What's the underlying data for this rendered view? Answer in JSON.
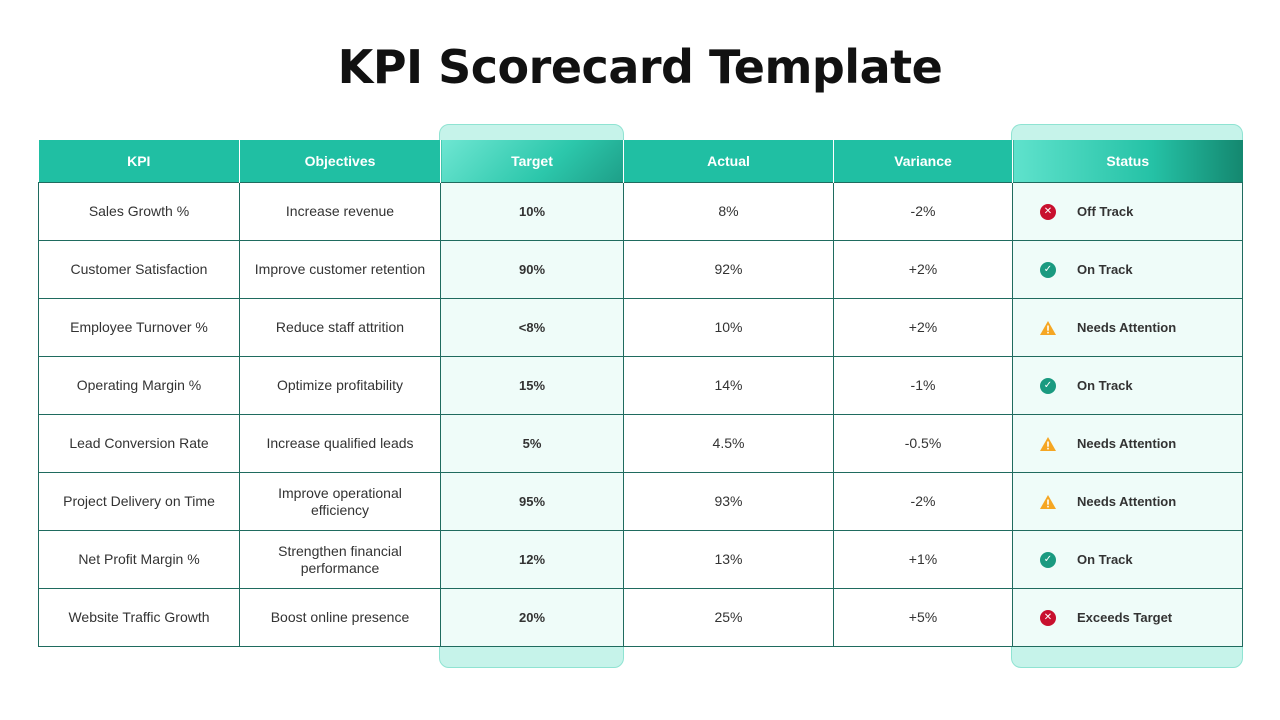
{
  "page": {
    "title": "KPI Scorecard Template"
  },
  "table": {
    "headers": {
      "kpi": "KPI",
      "objectives": "Objectives",
      "target": "Target",
      "actual": "Actual",
      "variance": "Variance",
      "status": "Status"
    },
    "rows": [
      {
        "kpi": "Sales Growth %",
        "objective": "Increase revenue",
        "target": "10%",
        "actual": "8%",
        "variance": "-2%",
        "status": "Off Track",
        "status_icon": "x-circle-icon"
      },
      {
        "kpi": "Customer Satisfaction",
        "objective": "Improve customer retention",
        "target": "90%",
        "actual": "92%",
        "variance": "+2%",
        "status": "On Track",
        "status_icon": "check-circle-icon"
      },
      {
        "kpi": "Employee Turnover %",
        "objective": "Reduce staff attrition",
        "target": "<8%",
        "actual": "10%",
        "variance": "+2%",
        "status": "Needs Attention",
        "status_icon": "warning-triangle-icon"
      },
      {
        "kpi": "Operating Margin %",
        "objective": "Optimize profitability",
        "target": "15%",
        "actual": "14%",
        "variance": "-1%",
        "status": "On Track",
        "status_icon": "check-circle-icon"
      },
      {
        "kpi": "Lead Conversion Rate",
        "objective": "Increase qualified leads",
        "target": "5%",
        "actual": "4.5%",
        "variance": "-0.5%",
        "status": "Needs Attention",
        "status_icon": "warning-triangle-icon"
      },
      {
        "kpi": "Project Delivery on Time",
        "objective": "Improve operational efficiency",
        "target": "95%",
        "actual": "93%",
        "variance": "-2%",
        "status": "Needs Attention",
        "status_icon": "warning-triangle-icon"
      },
      {
        "kpi": "Net Profit Margin %",
        "objective": "Strengthen financial performance",
        "target": "12%",
        "actual": "13%",
        "variance": "+1%",
        "status": "On Track",
        "status_icon": "check-circle-icon"
      },
      {
        "kpi": "Website Traffic Growth",
        "objective": "Boost online presence",
        "target": "20%",
        "actual": "25%",
        "variance": "+5%",
        "status": "Exceeds Target",
        "status_icon": "x-circle-icon"
      }
    ]
  },
  "colors": {
    "header_teal": "#20bfa3",
    "highlight_column": "#c6f3ea",
    "highlight_cell": "#effcf9",
    "grid_line": "#1f6b5f",
    "off_track_red": "#c8102e",
    "on_track_teal": "#1a9a80",
    "warning_amber": "#f5a623"
  }
}
